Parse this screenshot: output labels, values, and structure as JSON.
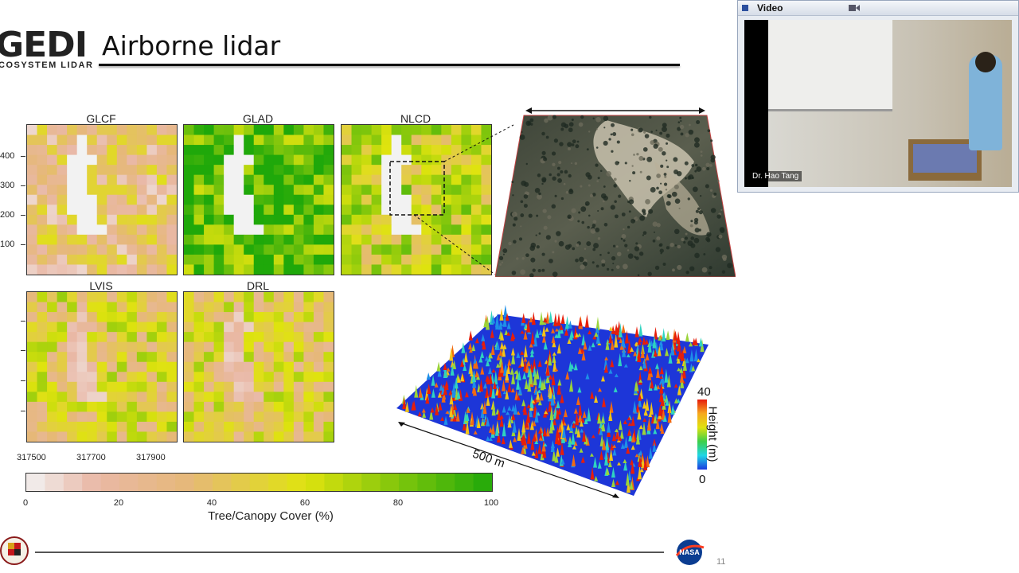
{
  "slide": {
    "logo_text": "GEDI",
    "logo_subtext": "COSYSTEM LIDAR",
    "title": "Airborne lidar",
    "page_number": "11",
    "footer_logos": [
      "umd-seal",
      "nasa-meatball"
    ]
  },
  "panels": {
    "labels": [
      "GLCF",
      "GLAD",
      "NLCD",
      "LVIS",
      "DRL"
    ],
    "y_ticks": [
      "400",
      "300",
      "200",
      "100"
    ],
    "x_ticks": [
      "317500",
      "317700",
      "317900"
    ]
  },
  "colorbar": {
    "title": "Tree/Canopy Cover (%)",
    "ticks": [
      "0",
      "20",
      "40",
      "60",
      "80",
      "100"
    ]
  },
  "lidar": {
    "height_axis_label": "Height (m)",
    "height_max": "40",
    "height_min": "0",
    "distance_label": "500 m"
  },
  "video": {
    "window_title": "Video",
    "speaker": "Dr. Hao Tang"
  },
  "colors": {
    "low": "#f2f2f2",
    "mid_pink": "#e9b8a6",
    "tan": "#e6b879",
    "yellow": "#dfe30e",
    "green": "#1fa80a",
    "height_hot": "#e61e0a",
    "height_cold": "#1e2fe0"
  }
}
